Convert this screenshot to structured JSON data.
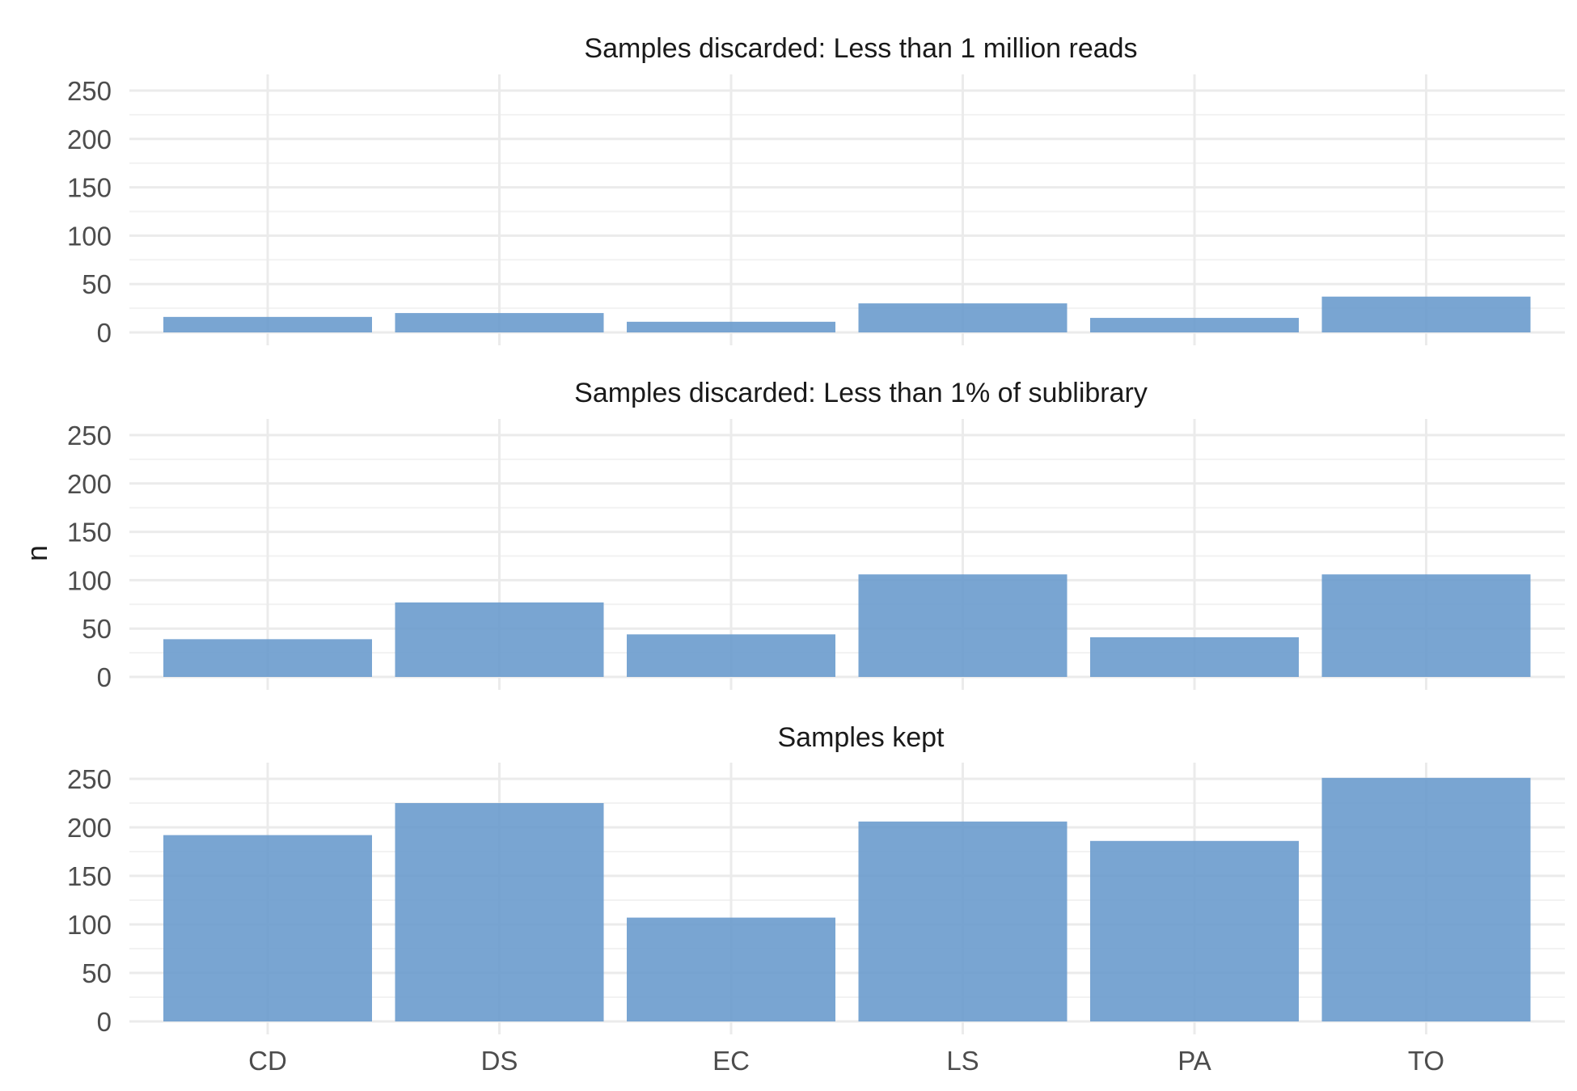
{
  "chart_data": {
    "type": "bar",
    "layout": "faceted-vertical",
    "categories": [
      "CD",
      "DS",
      "EC",
      "LS",
      "PA",
      "TO"
    ],
    "ylabel": "n",
    "xlabel": "",
    "ylim": [
      0,
      250
    ],
    "yticks": [
      0,
      50,
      100,
      150,
      200,
      250
    ],
    "grid": true,
    "bar_color": "#6699CC",
    "facets": [
      {
        "title": "Samples discarded: Less than 1 million reads",
        "values": [
          16,
          20,
          11,
          30,
          15,
          37
        ]
      },
      {
        "title": "Samples discarded: Less than 1% of sublibrary",
        "values": [
          39,
          77,
          44,
          106,
          41,
          106
        ]
      },
      {
        "title": "Samples kept",
        "values": [
          192,
          225,
          107,
          206,
          186,
          251
        ]
      }
    ]
  }
}
